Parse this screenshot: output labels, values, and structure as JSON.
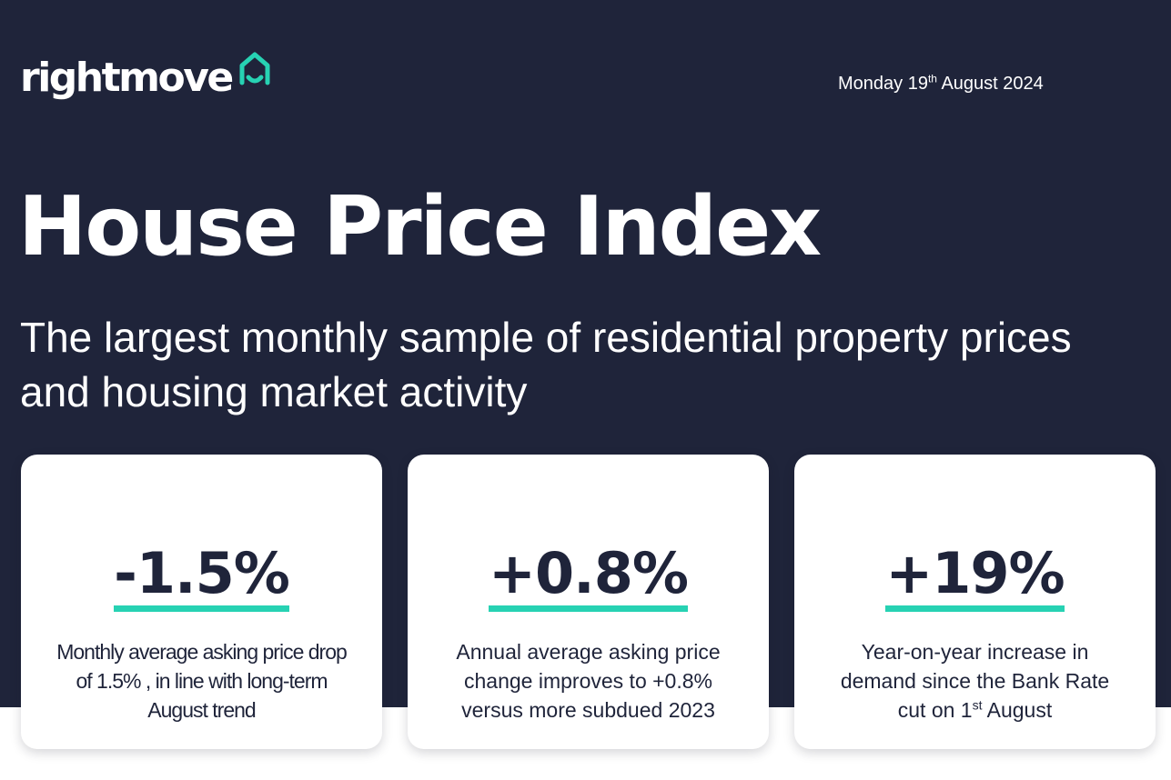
{
  "header": {
    "logo_text": "rightmove",
    "logo_icon": "house-outline-icon",
    "date": {
      "prefix": "Monday 19",
      "suffix": "th",
      "rest": " August 2024"
    }
  },
  "hero": {
    "title": "House Price Index",
    "subtitle": "The largest monthly sample of residential property prices and housing market activity"
  },
  "stats": [
    {
      "value": "-1.5%",
      "description": "Monthly average asking price drop of 1.5% , in line with long-term August trend"
    },
    {
      "value": "+0.8%",
      "description": "Annual average asking price change improves to +0.8% versus more subdued 2023"
    },
    {
      "value": "+19%",
      "description_main": "Year-on-year increase in demand since the Bank Rate cut on 1",
      "description_sup": "st",
      "description_end": " August"
    }
  ],
  "colors": {
    "background": "#1f243a",
    "accent": "#27d2b3",
    "card": "#ffffff",
    "text_dark": "#1f243a"
  }
}
